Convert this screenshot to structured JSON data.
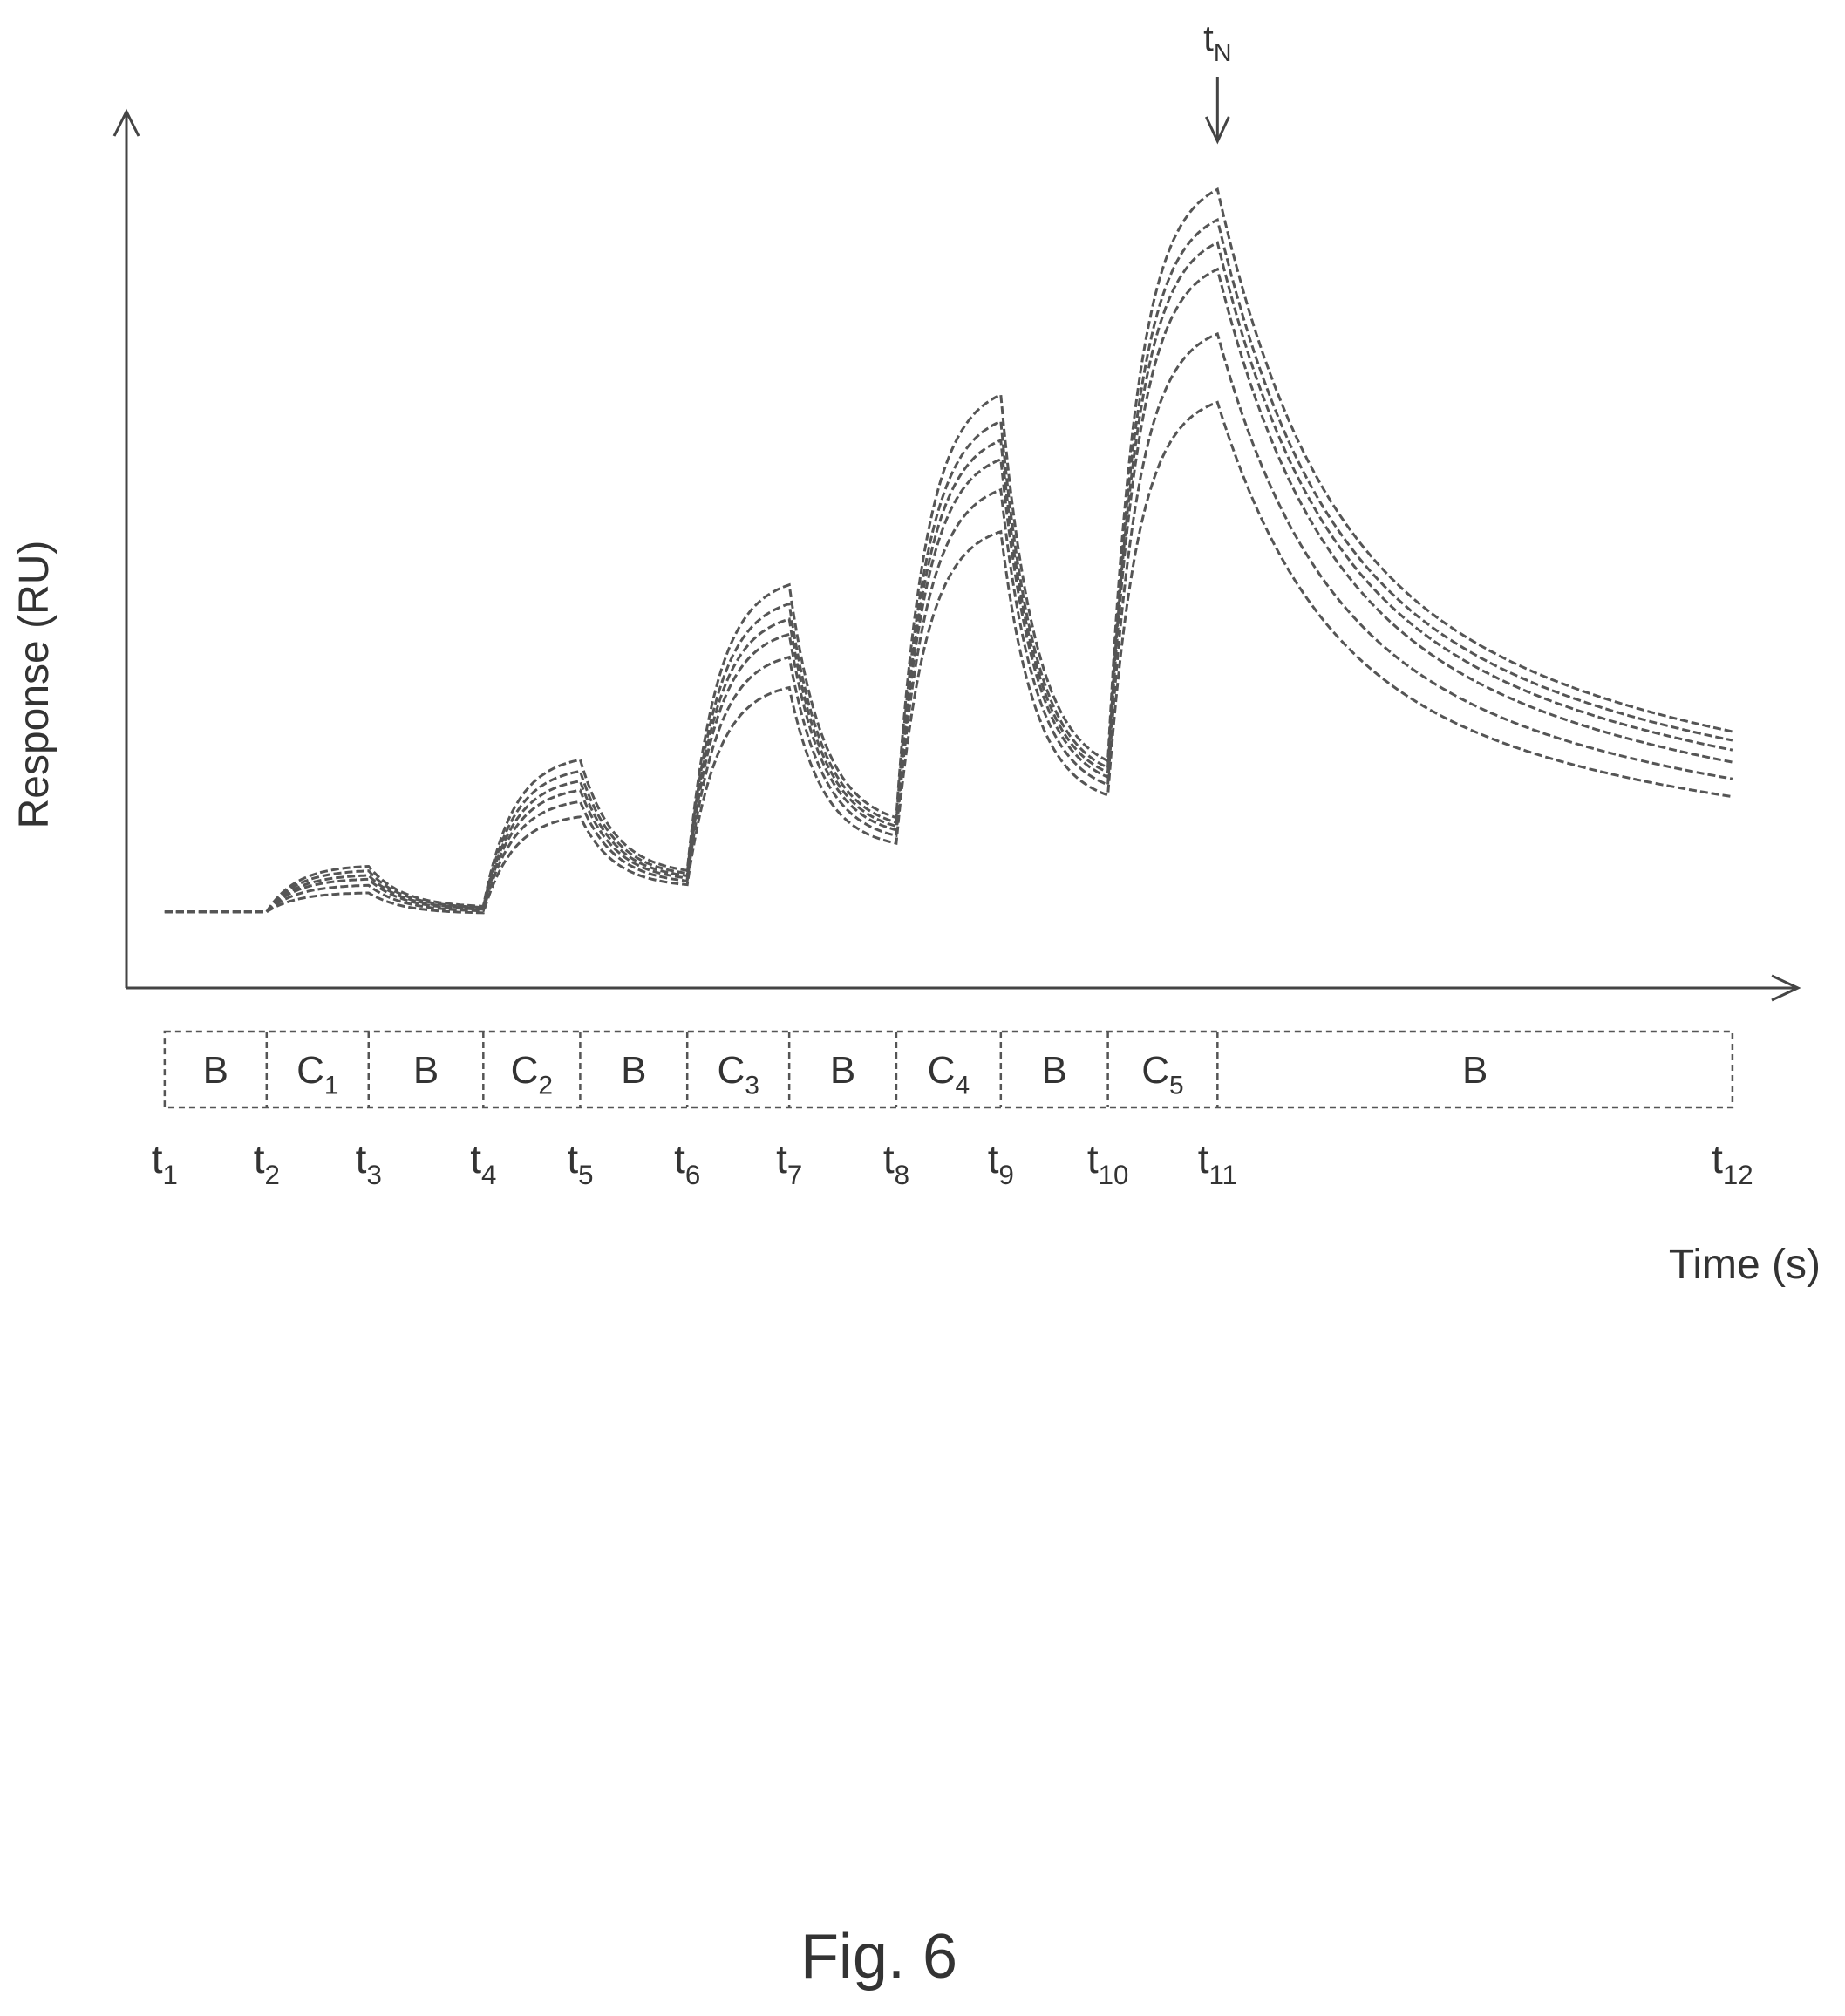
{
  "figure": {
    "caption": "Fig. 6"
  },
  "chart_data": {
    "type": "line",
    "title": "",
    "xlabel": "Time (s)",
    "ylabel": "Response (RU)",
    "x_ticks": [
      {
        "base": "t",
        "sub": "1"
      },
      {
        "base": "t",
        "sub": "2"
      },
      {
        "base": "t",
        "sub": "3"
      },
      {
        "base": "t",
        "sub": "4"
      },
      {
        "base": "t",
        "sub": "5"
      },
      {
        "base": "t",
        "sub": "6"
      },
      {
        "base": "t",
        "sub": "7"
      },
      {
        "base": "t",
        "sub": "8"
      },
      {
        "base": "t",
        "sub": "9"
      },
      {
        "base": "t",
        "sub": "10"
      },
      {
        "base": "t",
        "sub": "11"
      },
      {
        "base": "t",
        "sub": "12"
      }
    ],
    "x_tick_times": [
      0,
      4,
      8,
      12.5,
      16.3,
      20.5,
      24.5,
      28.7,
      32.8,
      37,
      41.3,
      61.5
    ],
    "segments": [
      {
        "label": "B",
        "sub": "",
        "start": 0,
        "end": 4
      },
      {
        "label": "C",
        "sub": "1",
        "start": 4,
        "end": 8
      },
      {
        "label": "B",
        "sub": "",
        "start": 8,
        "end": 12.5
      },
      {
        "label": "C",
        "sub": "2",
        "start": 12.5,
        "end": 16.3
      },
      {
        "label": "B",
        "sub": "",
        "start": 16.3,
        "end": 20.5
      },
      {
        "label": "C",
        "sub": "3",
        "start": 20.5,
        "end": 24.5
      },
      {
        "label": "B",
        "sub": "",
        "start": 24.5,
        "end": 28.7
      },
      {
        "label": "C",
        "sub": "4",
        "start": 28.7,
        "end": 32.8
      },
      {
        "label": "B",
        "sub": "",
        "start": 32.8,
        "end": 37
      },
      {
        "label": "C",
        "sub": "5",
        "start": 37,
        "end": 41.3
      },
      {
        "label": "B",
        "sub": "",
        "start": 41.3,
        "end": 61.5
      }
    ],
    "annotation": {
      "base": "t",
      "sub": "N",
      "time": 41.3
    },
    "xlim": [
      -1.5,
      64
    ],
    "ylim": [
      -5,
      110
    ],
    "baseline": 5,
    "series_peaks": [
      [
        11,
        25,
        48,
        73,
        100
      ],
      [
        10.4,
        23.5,
        45.5,
        69.5,
        96
      ],
      [
        9.8,
        22.2,
        43.5,
        67,
        93
      ],
      [
        9.3,
        21,
        41.5,
        64.5,
        89.5
      ],
      [
        8.5,
        19.5,
        38.5,
        60.5,
        81
      ],
      [
        7.5,
        17.5,
        34.5,
        55,
        72
      ]
    ],
    "series_end_values": [
      19.5,
      18.8,
      17.8,
      16.5,
      15.3,
      14
    ],
    "grid": false,
    "legend": "none"
  }
}
